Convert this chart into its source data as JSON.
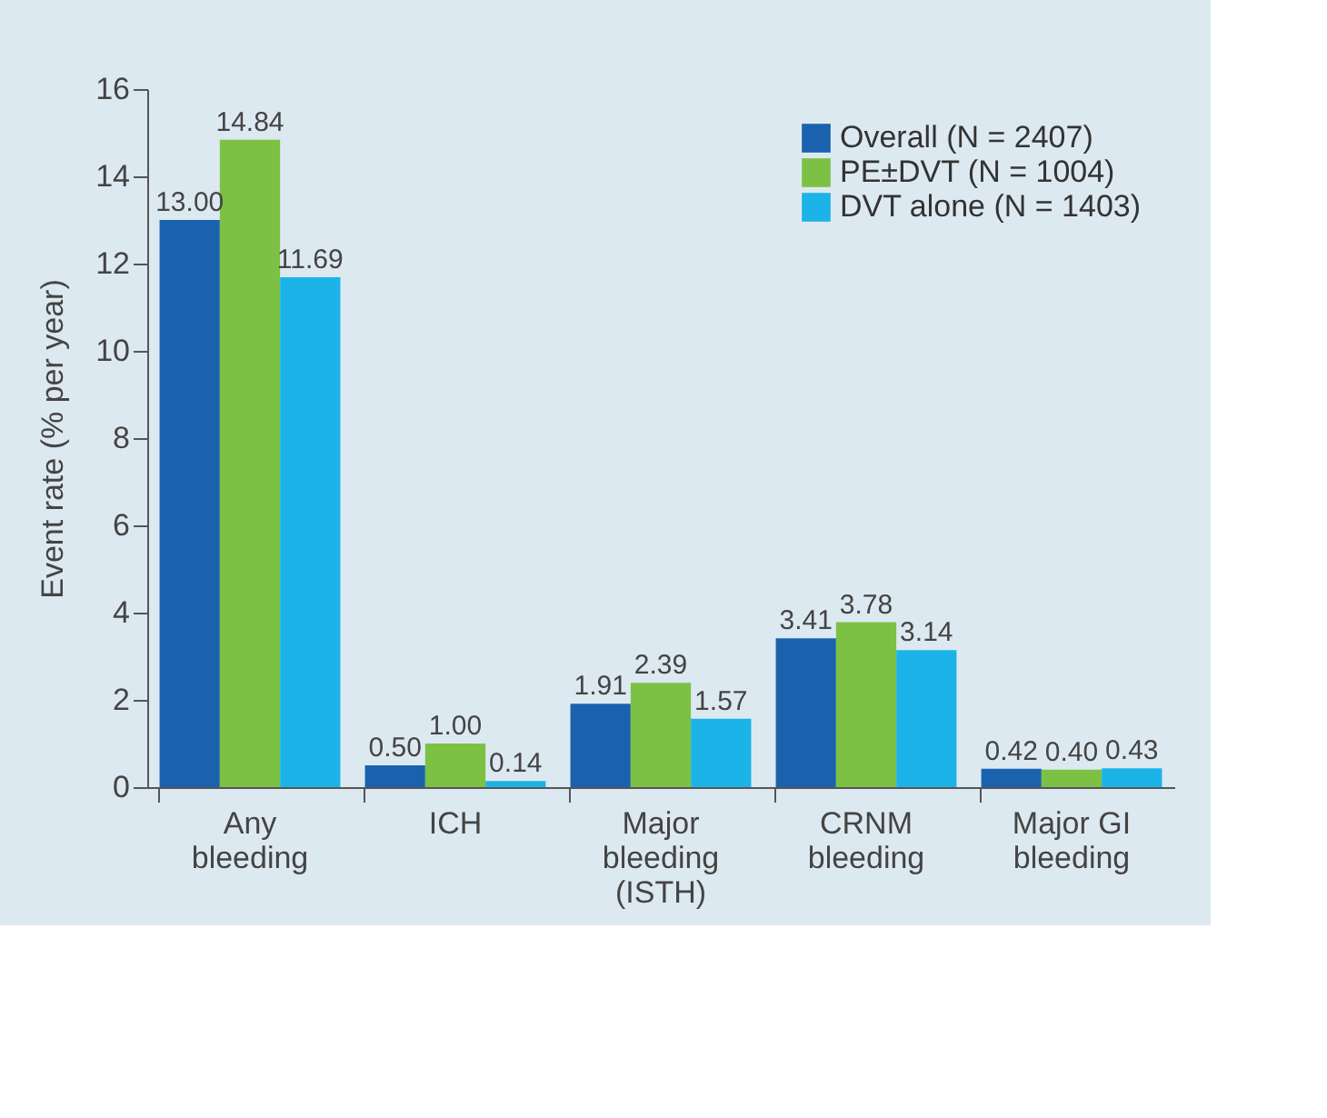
{
  "chart_data": {
    "type": "bar",
    "ylabel": "Event rate (% per year)",
    "categories": [
      "Any\nbleeding",
      "ICH",
      "Major\nbleeding\n(ISTH)",
      "CRNM\nbleeding",
      "Major GI\nbleeding"
    ],
    "series": [
      {
        "name": "Overall (N = 2407)",
        "color": "#1b62ae",
        "values": [
          13.0,
          0.5,
          1.91,
          3.41,
          0.42
        ],
        "value_labels": [
          "13.00",
          "0.50",
          "1.91",
          "3.41",
          "0.42"
        ]
      },
      {
        "name": "PE±DVT (N = 1004)",
        "color": "#7cc143",
        "values": [
          14.84,
          1.0,
          2.39,
          3.78,
          0.4
        ],
        "value_labels": [
          "14.84",
          "1.00",
          "2.39",
          "3.78",
          "0.40"
        ]
      },
      {
        "name": "DVT alone (N = 1403)",
        "color": "#1cb4e8",
        "values": [
          11.69,
          0.14,
          1.57,
          3.14,
          0.43
        ],
        "value_labels": [
          "11.69",
          "0.14",
          "1.57",
          "3.14",
          "0.43"
        ]
      }
    ],
    "ylim": [
      0,
      16
    ],
    "yticks": [
      0,
      2,
      4,
      6,
      8,
      10,
      12,
      14,
      16
    ],
    "grid": false,
    "legend": "top right"
  }
}
